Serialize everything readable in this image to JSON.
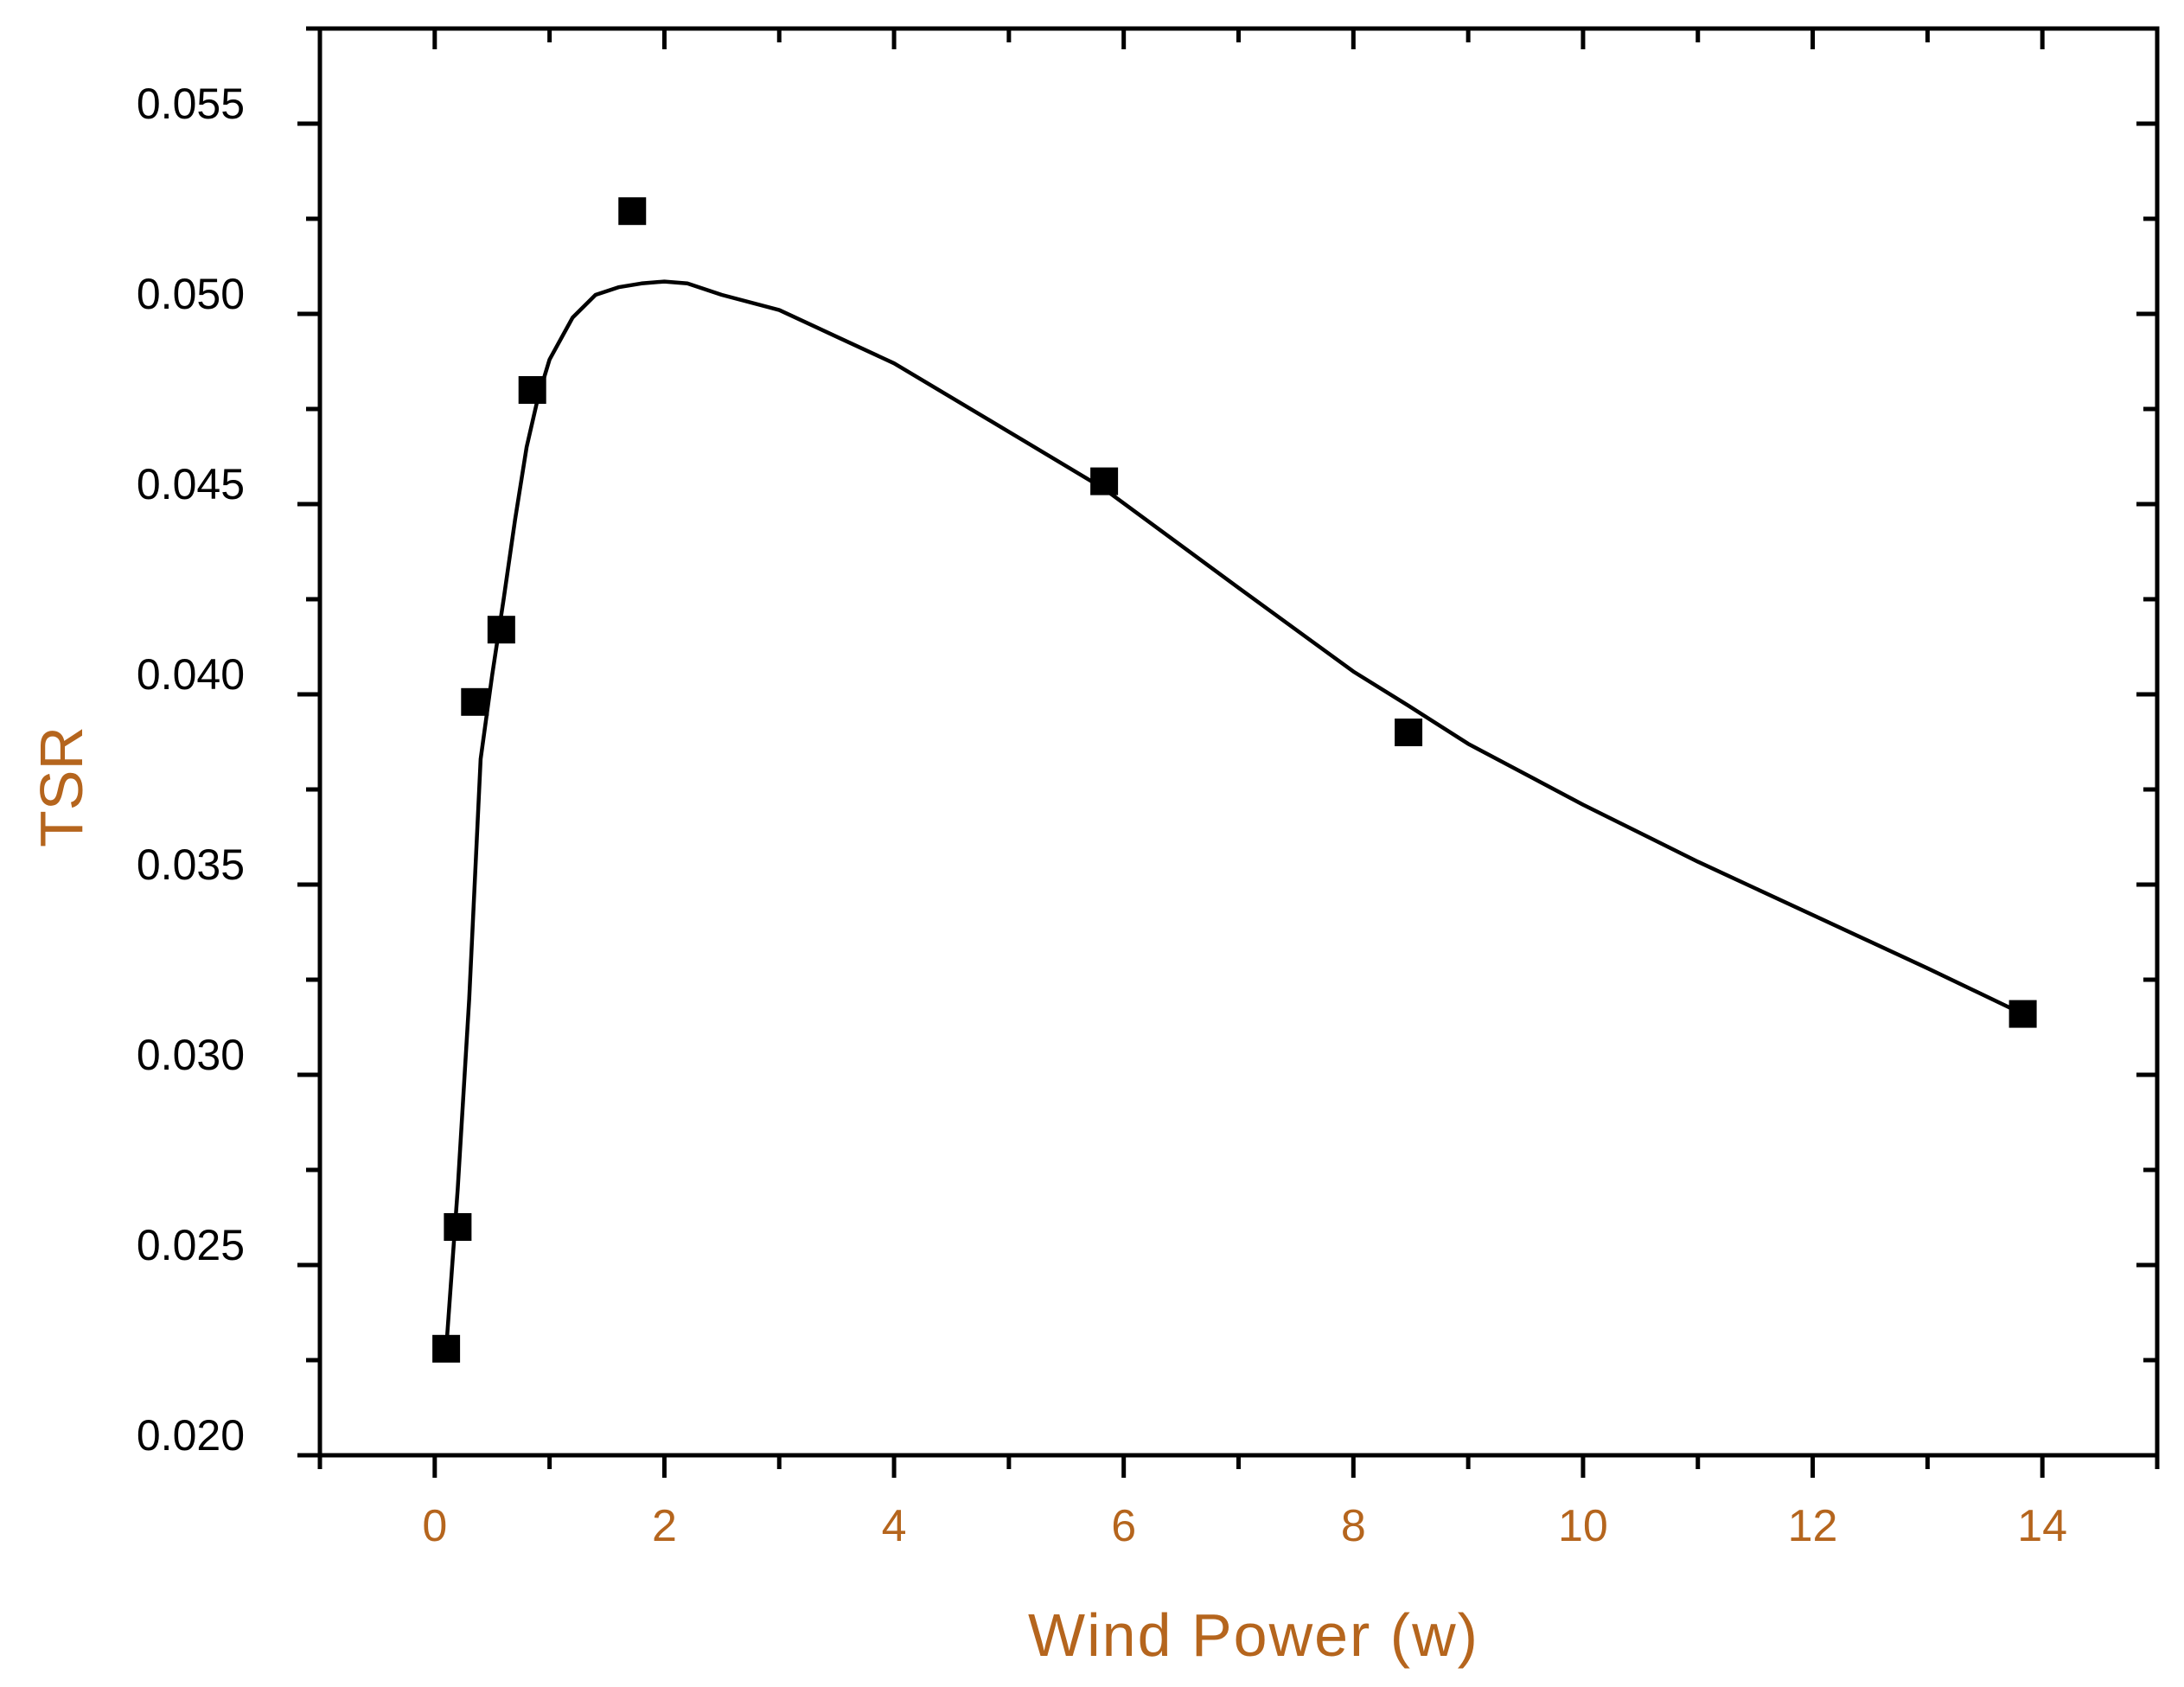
{
  "chart_data": {
    "type": "scatter",
    "title": "",
    "xlabel": "Wind Power (w)",
    "ylabel": "TSR",
    "xlim": [
      -1,
      15
    ],
    "ylim": [
      0.02,
      0.0575
    ],
    "xticks": [
      "0",
      "2",
      "4",
      "6",
      "8",
      "10",
      "12",
      "14"
    ],
    "yticks": [
      "0.020",
      "0.025",
      "0.030",
      "0.035",
      "0.040",
      "0.045",
      "0.050",
      "0.055"
    ],
    "grid": false,
    "colors": {
      "axis_label": "#B5651D",
      "marker": "#000000",
      "line": "#000000"
    },
    "series": [
      {
        "type": "scatter",
        "marker": "square",
        "x": [
          0.1,
          0.2,
          0.35,
          0.58,
          0.85,
          1.72,
          5.83,
          8.48,
          13.83
        ],
        "y": [
          0.0228,
          0.026,
          0.0398,
          0.0417,
          0.048,
          0.0527,
          0.0456,
          0.039,
          0.0316
        ]
      },
      {
        "type": "line",
        "style": "fitted curve",
        "x": [
          0.1,
          0.2,
          0.3,
          0.4,
          0.5,
          0.6,
          0.7,
          0.8,
          0.9,
          1.0,
          1.2,
          1.4,
          1.6,
          1.8,
          2.0,
          2.2,
          2.5,
          3.0,
          3.5,
          4.0,
          5.0,
          5.83,
          7.0,
          8.0,
          8.48,
          9.0,
          10.0,
          11.0,
          12.0,
          13.0,
          13.83
        ],
        "y": [
          0.0228,
          0.027,
          0.032,
          0.0383,
          0.0405,
          0.0425,
          0.0446,
          0.0465,
          0.0478,
          0.0488,
          0.0499,
          0.0505,
          0.0507,
          0.0508,
          0.05085,
          0.0508,
          0.0505,
          0.0501,
          0.0494,
          0.0487,
          0.0469,
          0.0454,
          0.0428,
          0.0406,
          0.0397,
          0.0387,
          0.0371,
          0.0356,
          0.0342,
          0.0328,
          0.0316
        ]
      }
    ]
  }
}
